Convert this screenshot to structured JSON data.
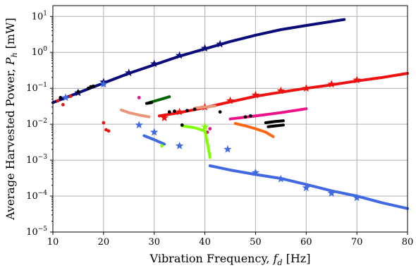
{
  "chart_data": {
    "type": "scatter",
    "xlabel": "Vibration Frequency, f_d [Hz]",
    "ylabel": "Average Harvested Power, P_h [mW]",
    "xlim": [
      10,
      80
    ],
    "ylim_log10": [
      -5,
      1.3
    ],
    "yscale": "log",
    "grid": true,
    "x_ticks": [
      10,
      20,
      30,
      40,
      50,
      60,
      70,
      80
    ],
    "y_ticks": [
      -5,
      -4,
      -3,
      -2,
      -1,
      0,
      1
    ],
    "colors": {
      "navy": "#0b0b7a",
      "red": "#ee1111",
      "royal": "#4169e1",
      "pink": "#ee1188",
      "lime": "#7fff00",
      "darkgreen": "#006400",
      "salmon": "#e9967a",
      "orange": "#ff6611",
      "black": "#000000"
    },
    "series": [
      {
        "color": "navy",
        "marker": "line",
        "curve": [
          [
            10,
            0.04
          ],
          [
            15,
            0.075
          ],
          [
            20,
            0.14
          ],
          [
            25,
            0.26
          ],
          [
            30,
            0.45
          ],
          [
            35,
            0.78
          ],
          [
            40,
            1.25
          ],
          [
            45,
            2.0
          ],
          [
            50,
            3.0
          ],
          [
            55,
            4.3
          ],
          [
            60,
            5.6
          ],
          [
            67.5,
            8.2
          ]
        ]
      },
      {
        "color": "navy",
        "marker": "star",
        "points": [
          [
            15,
            0.075
          ],
          [
            20,
            0.15
          ],
          [
            25,
            0.27
          ],
          [
            30,
            0.48
          ],
          [
            35,
            0.82
          ],
          [
            40,
            1.3
          ],
          [
            43,
            1.7
          ]
        ]
      },
      {
        "color": "red",
        "marker": "line",
        "curve": [
          [
            31,
            0.017
          ],
          [
            35,
            0.021
          ],
          [
            40,
            0.029
          ],
          [
            45,
            0.042
          ],
          [
            50,
            0.06
          ],
          [
            55,
            0.078
          ],
          [
            60,
            0.1
          ],
          [
            65,
            0.125
          ],
          [
            70,
            0.16
          ],
          [
            75,
            0.2
          ],
          [
            80,
            0.26
          ]
        ]
      },
      {
        "color": "red",
        "marker": "star",
        "points": [
          [
            32,
            0.015
          ],
          [
            35,
            0.022
          ],
          [
            40,
            0.03
          ],
          [
            45,
            0.045
          ],
          [
            50,
            0.065
          ],
          [
            55,
            0.085
          ],
          [
            60,
            0.1
          ],
          [
            65,
            0.13
          ],
          [
            70,
            0.17
          ]
        ]
      },
      {
        "color": "red",
        "marker": "dot",
        "points": [
          [
            11,
            0.045
          ],
          [
            12,
            0.035
          ],
          [
            13.5,
            0.06
          ],
          [
            20,
            0.011
          ],
          [
            20.5,
            0.007
          ],
          [
            21,
            0.0065
          ]
        ]
      },
      {
        "color": "royal",
        "marker": "line",
        "curve": [
          [
            41,
            0.0007
          ],
          [
            45,
            0.00053
          ],
          [
            50,
            0.0004
          ],
          [
            55,
            0.00031
          ],
          [
            60,
            0.00021
          ],
          [
            65,
            0.00014
          ],
          [
            70,
            0.0001
          ],
          [
            75,
            6.5e-05
          ],
          [
            80,
            4.5e-05
          ]
        ]
      },
      {
        "color": "royal",
        "marker": "line",
        "curve": [
          [
            28,
            0.0048
          ],
          [
            30,
            0.0037
          ],
          [
            32,
            0.0028
          ]
        ]
      },
      {
        "color": "royal",
        "marker": "star",
        "points": [
          [
            12.5,
            0.055
          ],
          [
            20,
            0.13
          ],
          [
            27,
            0.0095
          ],
          [
            30,
            0.006
          ],
          [
            35,
            0.0025
          ],
          [
            44.5,
            0.002
          ],
          [
            50,
            0.00045
          ],
          [
            55,
            0.0003
          ],
          [
            60,
            0.00017
          ],
          [
            65,
            0.00012
          ],
          [
            70,
            9e-05
          ]
        ]
      },
      {
        "color": "pink",
        "marker": "line",
        "curve": [
          [
            45,
            0.014
          ],
          [
            50,
            0.017
          ],
          [
            55,
            0.021
          ],
          [
            60,
            0.027
          ]
        ]
      },
      {
        "color": "pink",
        "marker": "dot",
        "points": [
          [
            27,
            0.055
          ],
          [
            40.5,
            0.006
          ],
          [
            41,
            0.0075
          ]
        ]
      },
      {
        "color": "lime",
        "marker": "line",
        "curve": [
          [
            35.5,
            0.009
          ],
          [
            38,
            0.008
          ],
          [
            40,
            0.0065
          ],
          [
            40.5,
            0.003
          ],
          [
            41,
            0.0012
          ]
        ]
      },
      {
        "color": "lime",
        "marker": "dot",
        "points": [
          [
            31.5,
            0.0025
          ]
        ]
      },
      {
        "color": "lime",
        "marker": "star",
        "points": [
          [
            40,
            0.0085
          ]
        ]
      },
      {
        "color": "darkgreen",
        "marker": "line",
        "curve": [
          [
            29,
            0.04
          ],
          [
            31,
            0.048
          ],
          [
            33,
            0.058
          ]
        ]
      },
      {
        "color": "salmon",
        "marker": "line",
        "curve": [
          [
            23.5,
            0.025
          ],
          [
            25,
            0.021
          ],
          [
            27,
            0.018
          ],
          [
            28,
            0.017
          ],
          [
            29,
            0.016
          ]
        ]
      },
      {
        "color": "salmon",
        "marker": "line",
        "curve": [
          [
            38,
            0.028
          ],
          [
            40,
            0.03
          ],
          [
            42,
            0.032
          ]
        ]
      },
      {
        "color": "orange",
        "marker": "line",
        "curve": [
          [
            46,
            0.0105
          ],
          [
            48,
            0.009
          ],
          [
            50,
            0.0075
          ],
          [
            52,
            0.006
          ],
          [
            53.5,
            0.0045
          ]
        ]
      },
      {
        "color": "black",
        "marker": "line",
        "curve": [
          [
            28.5,
            0.038
          ],
          [
            29.5,
            0.04
          ]
        ]
      },
      {
        "color": "black",
        "marker": "line",
        "curve": [
          [
            52,
            0.011
          ],
          [
            54,
            0.012
          ],
          [
            55.5,
            0.0125
          ]
        ]
      },
      {
        "color": "black",
        "marker": "line",
        "curve": [
          [
            52.5,
            0.0085
          ],
          [
            55.5,
            0.0095
          ]
        ]
      },
      {
        "color": "black",
        "marker": "dot",
        "points": [
          [
            11.5,
            0.055
          ],
          [
            15,
            0.08
          ],
          [
            17,
            0.1
          ],
          [
            17.5,
            0.11
          ],
          [
            18,
            0.115
          ],
          [
            33,
            0.022
          ],
          [
            34,
            0.023
          ],
          [
            35.5,
            0.0095
          ],
          [
            36.5,
            0.024
          ],
          [
            38,
            0.026
          ],
          [
            43,
            0.022
          ],
          [
            48,
            0.016
          ],
          [
            49,
            0.017
          ]
        ]
      }
    ]
  }
}
